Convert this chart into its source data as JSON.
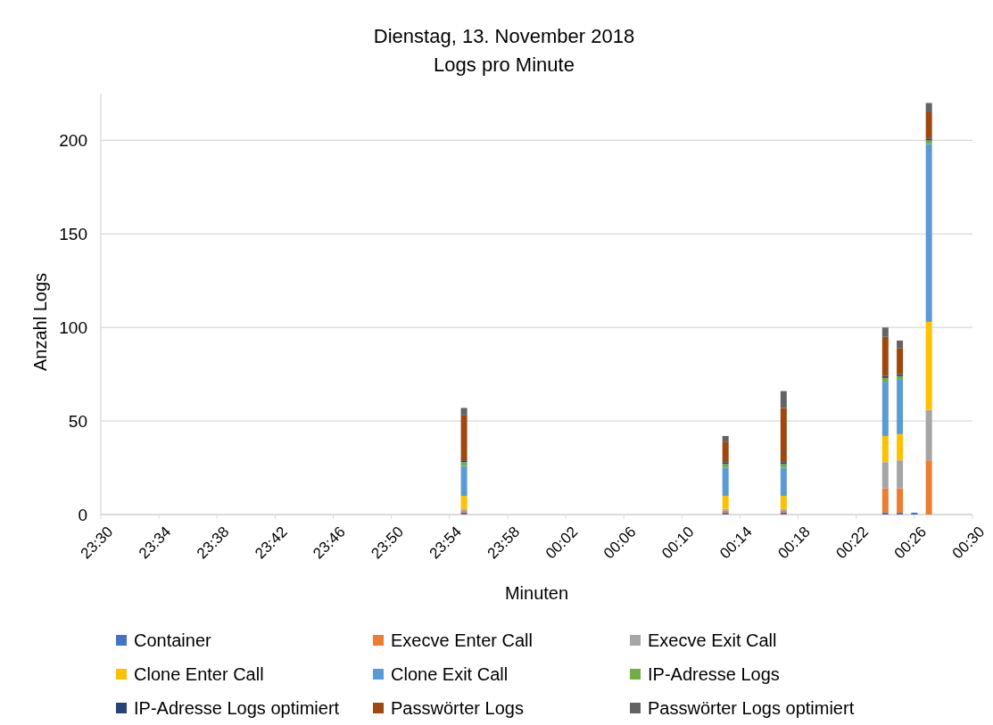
{
  "chart_data": {
    "type": "bar",
    "title": "Dienstag, 13. November 2018",
    "subtitle": "Logs pro Minute",
    "xlabel": "Minuten",
    "ylabel": "Anzahl Logs",
    "stacked": true,
    "grid": "y",
    "legend": "bottom",
    "x": [
      "2018-11-13T23:55",
      "2018-11-14T00:13",
      "2018-11-14T00:17",
      "2018-11-14T00:24",
      "2018-11-14T00:25",
      "2018-11-14T00:26",
      "2018-11-14T00:27"
    ],
    "xlim": [
      "2018-11-13T23:30",
      "2018-11-14T00:30"
    ],
    "xticks": [
      {
        "value": "2018-11-13T23:30",
        "label": "23:30"
      },
      {
        "value": "2018-11-13T23:34",
        "label": "23:34"
      },
      {
        "value": "2018-11-13T23:38",
        "label": "23:38"
      },
      {
        "value": "2018-11-13T23:42",
        "label": "23:42"
      },
      {
        "value": "2018-11-13T23:46",
        "label": "23:46"
      },
      {
        "value": "2018-11-13T23:50",
        "label": "23:50"
      },
      {
        "value": "2018-11-13T23:54",
        "label": "23:54"
      },
      {
        "value": "2018-11-13T23:58",
        "label": "23:58"
      },
      {
        "value": "2018-11-14T00:02",
        "label": "00:02"
      },
      {
        "value": "2018-11-14T00:06",
        "label": "00:06"
      },
      {
        "value": "2018-11-14T00:10",
        "label": "00:10"
      },
      {
        "value": "2018-11-14T00:14",
        "label": "00:14"
      },
      {
        "value": "2018-11-14T00:18",
        "label": "00:18"
      },
      {
        "value": "2018-11-14T00:22",
        "label": "00:22"
      },
      {
        "value": "2018-11-14T00:26",
        "label": "00:26"
      },
      {
        "value": "2018-11-14T00:30",
        "label": "00:30"
      }
    ],
    "ylim": [
      0,
      225
    ],
    "yticks": [
      0,
      50,
      100,
      150,
      200
    ],
    "series": [
      {
        "name": "Container",
        "color": "#4472c4",
        "values": [
          1,
          1,
          1,
          1,
          1,
          1,
          0
        ]
      },
      {
        "name": "Execve Enter Call",
        "color": "#ed7d31",
        "values": [
          1,
          1,
          1,
          13,
          13,
          0,
          29
        ]
      },
      {
        "name": "Execve Exit Call",
        "color": "#a5a5a5",
        "values": [
          1,
          1,
          1,
          14,
          15,
          0,
          27
        ]
      },
      {
        "name": "Clone Enter Call",
        "color": "#ffc000",
        "values": [
          7,
          7,
          7,
          14,
          14,
          0,
          47
        ]
      },
      {
        "name": "Clone Exit Call",
        "color": "#5b9bd5",
        "values": [
          16,
          15,
          15,
          29,
          29,
          0,
          95
        ]
      },
      {
        "name": "IP-Adresse Logs",
        "color": "#70ad47",
        "values": [
          2,
          2,
          2,
          2,
          2,
          0,
          2
        ]
      },
      {
        "name": "IP-Adresse Logs optimiert",
        "color": "#264478",
        "values": [
          1,
          1,
          1,
          1,
          1,
          0,
          1
        ]
      },
      {
        "name": "Passwörter Logs",
        "color": "#9e480e",
        "values": [
          24,
          11,
          29,
          21,
          14,
          0,
          14
        ]
      },
      {
        "name": "Passwörter Logs optimiert",
        "color": "#636363",
        "values": [
          4,
          3,
          9,
          5,
          4,
          0,
          5
        ]
      }
    ]
  }
}
